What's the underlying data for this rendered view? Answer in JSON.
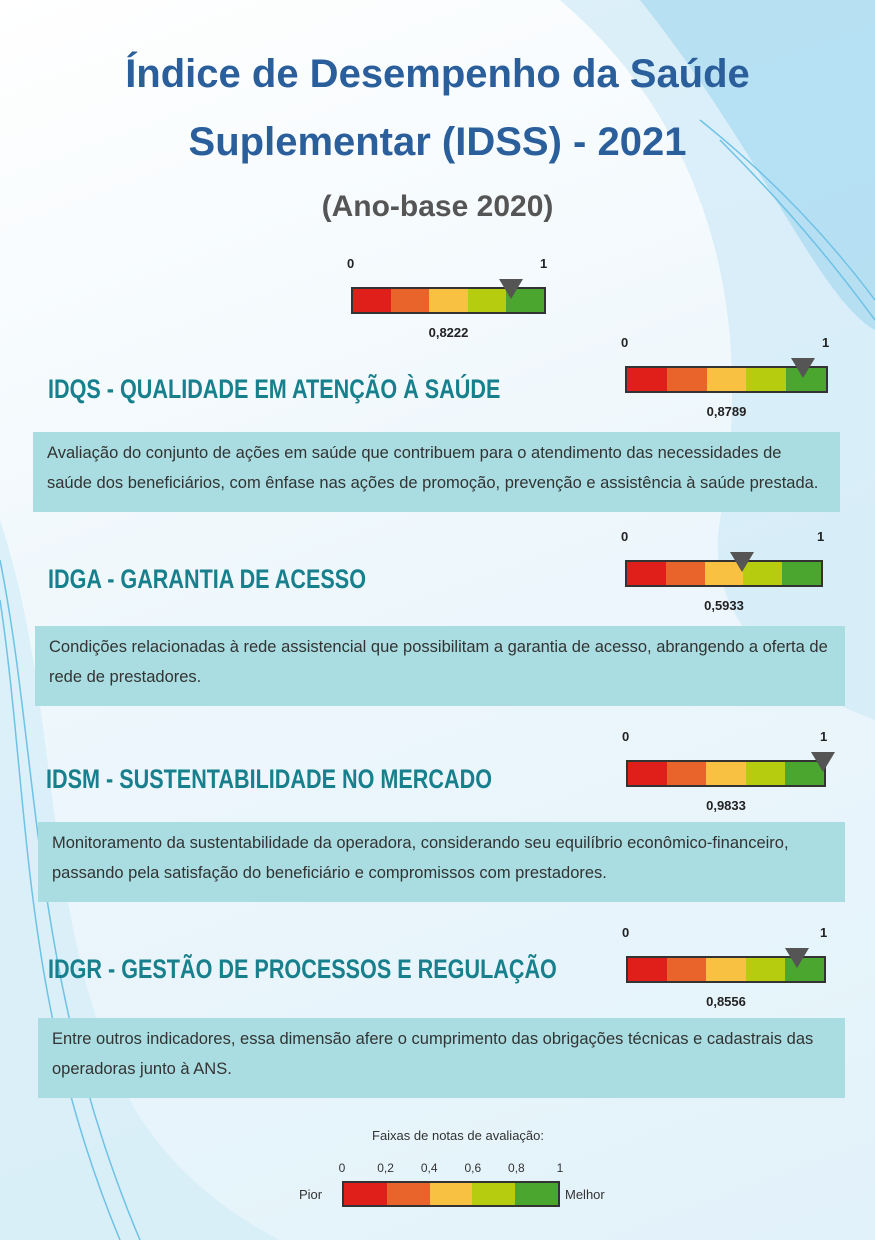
{
  "header": {
    "title_line1": "Índice de Desempenho da Saúde",
    "title_line2": "Suplementar (IDSS) - 2021",
    "subtitle": "(Ano-base 2020)"
  },
  "band_colors": [
    "#e01e1a",
    "#e9642a",
    "#f8c142",
    "#b6cc0e",
    "#4aa62e"
  ],
  "overall": {
    "min": 0,
    "max": 1,
    "value": 0.8222,
    "label": "0,8222"
  },
  "sections": [
    {
      "title": "IDQS - QUALIDADE EM ATENÇÃO À SAÚDE",
      "description": "Avaliação do conjunto de ações em saúde que contribuem para o atendimento das necessidades de saúde dos beneficiários, com ênfase nas ações de promoção, prevenção e assistência à saúde prestada.",
      "gauge": {
        "min": 0,
        "max": 1,
        "value": 0.8789,
        "label": "0,8789"
      }
    },
    {
      "title": "IDGA - GARANTIA DE ACESSO",
      "description": "Condições relacionadas à rede assistencial que possibilitam a garantia de acesso, abrangendo a oferta de rede de prestadores.",
      "gauge": {
        "min": 0,
        "max": 1,
        "value": 0.5933,
        "label": "0,5933"
      }
    },
    {
      "title": "IDSM - SUSTENTABILIDADE NO MERCADO",
      "description": "Monitoramento da sustentabilidade da operadora, considerando seu equilíbrio econômico-financeiro, passando pela satisfação do beneficiário e compromissos com prestadores.",
      "gauge": {
        "min": 0,
        "max": 1,
        "value": 0.9833,
        "label": "0,9833"
      }
    },
    {
      "title": "IDGR - GESTÃO DE PROCESSOS E REGULAÇÃO",
      "description": "Entre outros indicadores, essa dimensão afere o cumprimento das obrigações técnicas e cadastrais das operadoras junto à ANS.",
      "gauge": {
        "min": 0,
        "max": 1,
        "value": 0.8556,
        "label": "0,8556"
      }
    }
  ],
  "legend": {
    "title": "Faixas de notas de avaliação:",
    "low_label": "Pior",
    "high_label": "Melhor",
    "ticks": [
      0,
      {
        "value": 0.2,
        "label": "0,2"
      },
      {
        "value": 0.4,
        "label": "0,4"
      },
      {
        "value": 0.6,
        "label": "0,6"
      },
      {
        "value": 0.8,
        "label": "0,8"
      },
      1
    ]
  }
}
